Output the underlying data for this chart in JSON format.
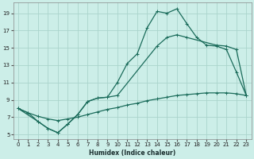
{
  "xlabel": "Humidex (Indice chaleur)",
  "bg_color": "#cceee8",
  "grid_color": "#aad4cc",
  "line_color": "#1a6b5a",
  "xlim": [
    -0.5,
    23.5
  ],
  "ylim": [
    4.5,
    20.2
  ],
  "xticks": [
    0,
    1,
    2,
    3,
    4,
    5,
    6,
    7,
    8,
    9,
    10,
    11,
    12,
    13,
    14,
    15,
    16,
    17,
    18,
    19,
    20,
    21,
    22,
    23
  ],
  "yticks": [
    5,
    7,
    9,
    11,
    13,
    15,
    17,
    19
  ],
  "line1_x": [
    0,
    1,
    2,
    3,
    4,
    5,
    6,
    7,
    8,
    9,
    10,
    11,
    12,
    13,
    14,
    15,
    16,
    17,
    18,
    19,
    20,
    21,
    22,
    23
  ],
  "line1_y": [
    8.0,
    7.5,
    6.5,
    5.7,
    5.2,
    6.2,
    7.3,
    8.8,
    9.2,
    9.3,
    11.0,
    13.2,
    14.3,
    17.3,
    19.2,
    19.0,
    19.5,
    17.8,
    16.2,
    15.3,
    15.2,
    14.8,
    12.2,
    9.5
  ],
  "line2_x": [
    0,
    2,
    3,
    4,
    5,
    6,
    7,
    8,
    9,
    10,
    14,
    15,
    16,
    17,
    20,
    21,
    22,
    23
  ],
  "line2_y": [
    8.0,
    6.5,
    5.7,
    5.2,
    6.2,
    7.3,
    8.8,
    9.2,
    9.3,
    9.5,
    15.2,
    16.2,
    16.5,
    16.2,
    15.3,
    15.2,
    14.8,
    9.5
  ],
  "line3_x": [
    0,
    1,
    2,
    3,
    4,
    5,
    6,
    7,
    8,
    9,
    10,
    11,
    12,
    13,
    14,
    15,
    16,
    17,
    18,
    19,
    20,
    21,
    22,
    23
  ],
  "line3_y": [
    8.0,
    7.5,
    7.1,
    6.8,
    6.6,
    6.8,
    7.0,
    7.3,
    7.6,
    7.9,
    8.1,
    8.4,
    8.6,
    8.9,
    9.1,
    9.3,
    9.5,
    9.6,
    9.7,
    9.8,
    9.8,
    9.8,
    9.7,
    9.5
  ]
}
